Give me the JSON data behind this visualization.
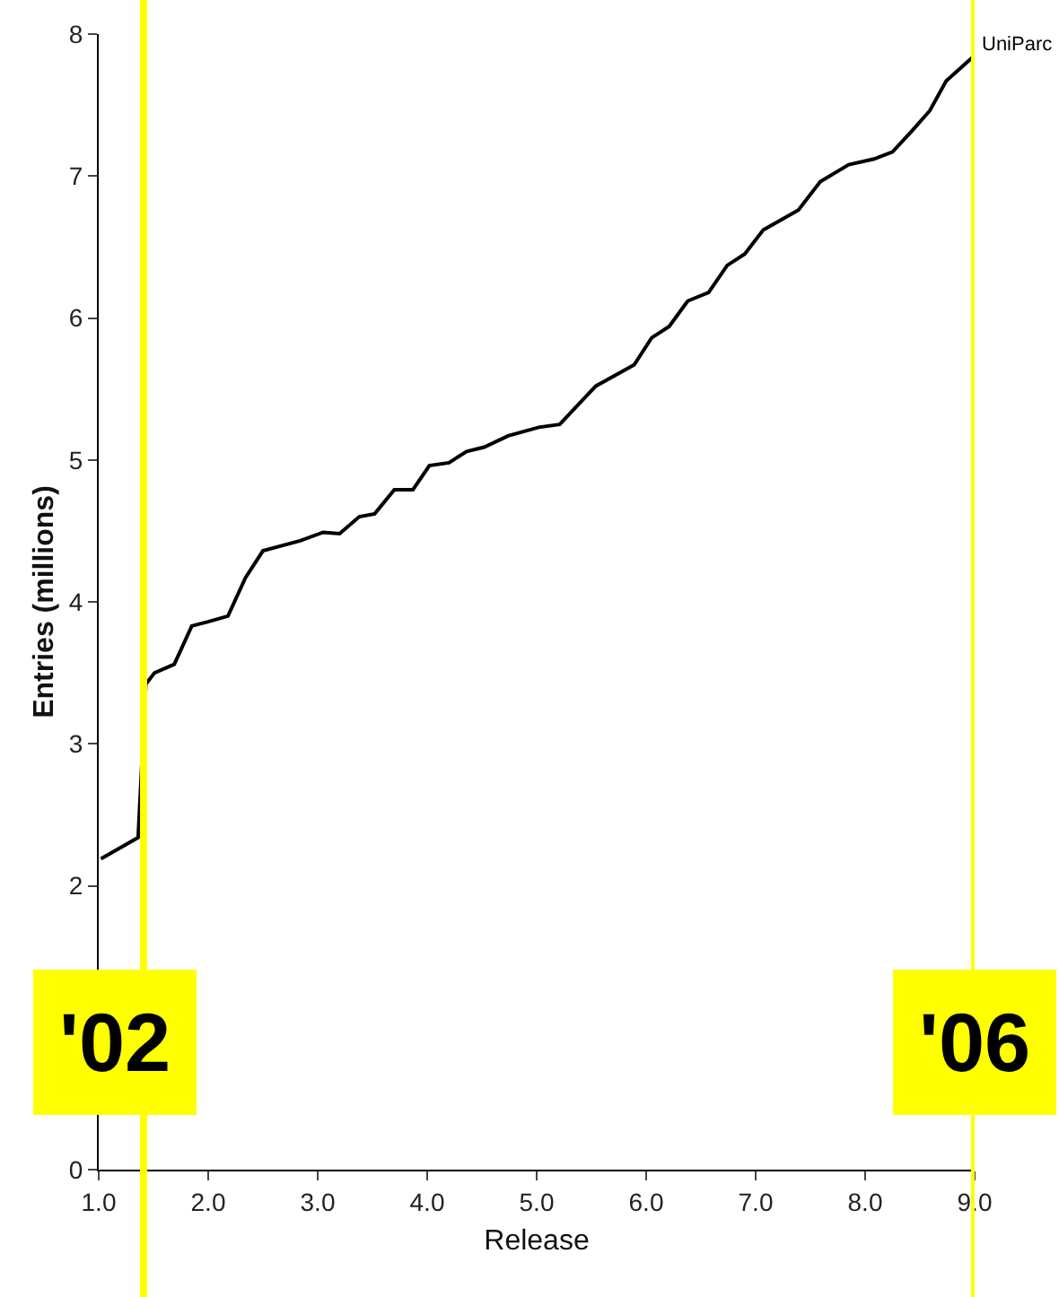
{
  "chart_data": {
    "type": "line",
    "xlabel": "Release",
    "ylabel": "Entries (millions)",
    "xlim": [
      1,
      9
    ],
    "xticks": [
      {
        "value": 1,
        "label": "1.0"
      },
      {
        "value": 2,
        "label": "2.0"
      },
      {
        "value": 3,
        "label": "3.0"
      },
      {
        "value": 4,
        "label": "4.0"
      },
      {
        "value": 5,
        "label": "5.0"
      },
      {
        "value": 6,
        "label": "6.0"
      },
      {
        "value": 7,
        "label": "7.0"
      },
      {
        "value": 8,
        "label": "8.0"
      },
      {
        "value": 9,
        "label": "9.0"
      }
    ],
    "ylim": [
      0,
      8
    ],
    "yticks": [
      0,
      2,
      3,
      4,
      5,
      6,
      7,
      8
    ],
    "grid": false,
    "legend": false,
    "marker": "none",
    "line_style": "solid",
    "series": [
      {
        "name": "UniParc",
        "color": "#000000",
        "x": [
          1.02,
          1.36,
          1.43,
          1.51,
          1.69,
          1.85,
          2.0,
          2.18,
          2.34,
          2.5,
          2.84,
          3.05,
          3.2,
          3.38,
          3.52,
          3.7,
          3.87,
          4.02,
          4.2,
          4.36,
          4.52,
          4.74,
          5.02,
          5.21,
          5.54,
          5.89,
          6.05,
          6.21,
          6.38,
          6.57,
          6.74,
          6.9,
          7.07,
          7.39,
          7.59,
          7.85,
          8.08,
          8.25,
          8.43,
          8.59,
          8.74,
          9.0
        ],
        "values": [
          2.19,
          2.34,
          3.42,
          3.5,
          3.56,
          3.83,
          3.86,
          3.9,
          4.17,
          4.36,
          4.43,
          4.49,
          4.48,
          4.6,
          4.62,
          4.79,
          4.79,
          4.96,
          4.98,
          5.06,
          5.09,
          5.17,
          5.23,
          5.25,
          5.52,
          5.67,
          5.86,
          5.94,
          6.12,
          6.18,
          6.37,
          6.45,
          6.62,
          6.76,
          6.96,
          7.08,
          7.12,
          7.17,
          7.32,
          7.46,
          7.67,
          7.85
        ]
      }
    ],
    "ref_lines": [
      {
        "axis": "x",
        "value": 1.41,
        "color": "#ffff00"
      },
      {
        "axis": "x",
        "value": 9.0,
        "color": "#ffff00"
      }
    ],
    "annotations": [
      {
        "text": "'02",
        "x": 1.41
      },
      {
        "text": "'06",
        "x": 9.0
      }
    ]
  }
}
